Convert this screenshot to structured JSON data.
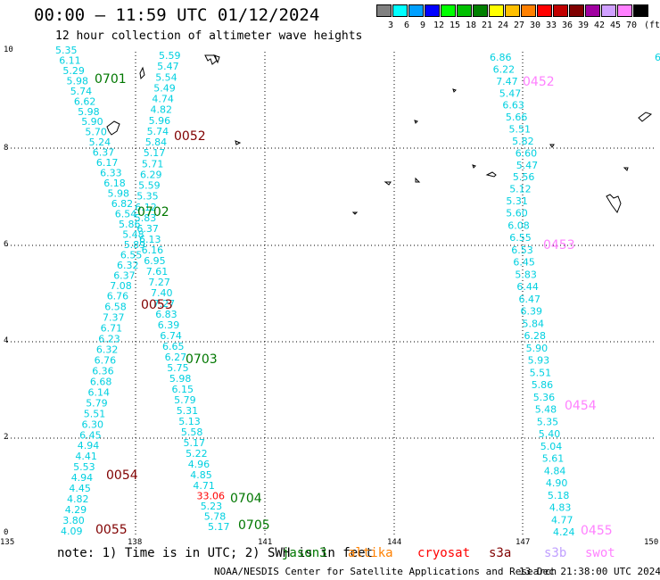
{
  "title": "00:00 – 11:59 UTC 01/12/2024",
  "subtitle": "12 hour collection of altimeter wave heights",
  "legend": {
    "bins": [
      {
        "label": "3",
        "color": "#808080"
      },
      {
        "label": "6",
        "color": "#00ffff"
      },
      {
        "label": "9",
        "color": "#00a0ff"
      },
      {
        "label": "12",
        "color": "#0000ff"
      },
      {
        "label": "15",
        "color": "#00ff00"
      },
      {
        "label": "18",
        "color": "#00c000"
      },
      {
        "label": "21",
        "color": "#008000"
      },
      {
        "label": "24",
        "color": "#ffff00"
      },
      {
        "label": "27",
        "color": "#ffc000"
      },
      {
        "label": "30",
        "color": "#ff8000"
      },
      {
        "label": "33",
        "color": "#ff0000"
      },
      {
        "label": "36",
        "color": "#c00000"
      },
      {
        "label": "39",
        "color": "#800000"
      },
      {
        "label": "42",
        "color": "#a000a0"
      },
      {
        "label": "45",
        "color": "#d0a0ff"
      },
      {
        "label": "70",
        "color": "#ff80ff"
      },
      {
        "label": "",
        "color": "#000000"
      }
    ],
    "unit": "(ft)"
  },
  "axes": {
    "x_ticks": [
      "135",
      "138",
      "141",
      "144",
      "147",
      "150"
    ],
    "y_ticks": [
      "10",
      "8",
      "6",
      "4",
      "2",
      "0"
    ]
  },
  "tracks": [
    {
      "values": [
        "5.35",
        "6.11",
        "5.29",
        "5.98",
        "5.74",
        "6.62",
        "5.98",
        "5.90",
        "5.70",
        "5.24",
        "6.37",
        "6.17",
        "6.33",
        "6.18",
        "5.98",
        "6.82",
        "6.54",
        "5.86",
        "5.48",
        "5.89",
        "6.55",
        "6.32",
        "6.37",
        "7.08",
        "6.76",
        "6.58",
        "7.37",
        "6.71",
        "6.23",
        "6.32",
        "6.76",
        "6.36",
        "6.68",
        "6.14",
        "5.79",
        "5.51",
        "6.30",
        "6.45",
        "4.94",
        "4.41",
        "5.53",
        "4.94",
        "4.45",
        "4.82",
        "4.29",
        "3.80",
        "4.09"
      ]
    },
    {
      "values": [
        "5.59",
        "5.47",
        "5.54",
        "5.49",
        "4.74",
        "4.82",
        "5.96",
        "5.74",
        "5.84",
        "5.17",
        "5.71",
        "6.29",
        "5.59",
        "5.35",
        "6.12",
        "5.83",
        "6.37",
        "6.13",
        "6.16",
        "6.95",
        "7.61",
        "7.27",
        "7.40",
        "7.27",
        "6.83",
        "6.39",
        "6.74",
        "6.65",
        "6.27",
        "5.75",
        "5.98",
        "6.15",
        "5.79",
        "5.31",
        "5.13",
        "5.58",
        "5.17",
        "5.22",
        "4.96",
        "4.85",
        "4.71",
        "33.06",
        "5.23",
        "5.78",
        "5.17"
      ]
    },
    {
      "values": [
        "6.86",
        "6.22",
        "7.47",
        "5.47",
        "6.63",
        "5.66",
        "5.51",
        "5.82",
        "6.60",
        "5.47",
        "5.56",
        "5.12",
        "5.31",
        "5.60",
        "6.08",
        "6.55",
        "6.53",
        "6.45",
        "5.83",
        "6.44",
        "6.47",
        "6.39",
        "5.84",
        "6.28",
        "5.90",
        "5.93",
        "5.51",
        "5.86",
        "5.36",
        "5.48",
        "5.35",
        "5.40",
        "5.04",
        "5.61",
        "4.84",
        "4.90",
        "5.18",
        "4.83",
        "4.77",
        "4.24"
      ]
    },
    {
      "values": [
        "6"
      ]
    }
  ],
  "time_labels": [
    {
      "text": "0701",
      "color": "#007700"
    },
    {
      "text": "0052",
      "color": "#800000"
    },
    {
      "text": "0702",
      "color": "#007700"
    },
    {
      "text": "0053",
      "color": "#800000"
    },
    {
      "text": "0703",
      "color": "#007700"
    },
    {
      "text": "0054",
      "color": "#800000"
    },
    {
      "text": "0704",
      "color": "#007700"
    },
    {
      "text": "0055",
      "color": "#800000"
    },
    {
      "text": "0705",
      "color": "#007700"
    },
    {
      "text": "0452",
      "color": "#ff80ff"
    },
    {
      "text": "0453",
      "color": "#ff80ff"
    },
    {
      "text": "0454",
      "color": "#ff80ff"
    },
    {
      "text": "0455",
      "color": "#ff80ff"
    }
  ],
  "note": "note: 1) Time is in UTC; 2) SWH is in feet",
  "satellites": [
    {
      "name": "jason3",
      "color": "#007700"
    },
    {
      "name": "altika",
      "color": "#ff8000"
    },
    {
      "name": "cryosat",
      "color": "#ff0000"
    },
    {
      "name": "s3a",
      "color": "#800000"
    },
    {
      "name": "s3b",
      "color": "#c0a0ff"
    },
    {
      "name": "swot",
      "color": "#ff80ff"
    }
  ],
  "footer": "NOAA/NESDIS Center for Satellite Applications and Research",
  "footer_date": "13 Dec 21:38:00 UTC 2024"
}
